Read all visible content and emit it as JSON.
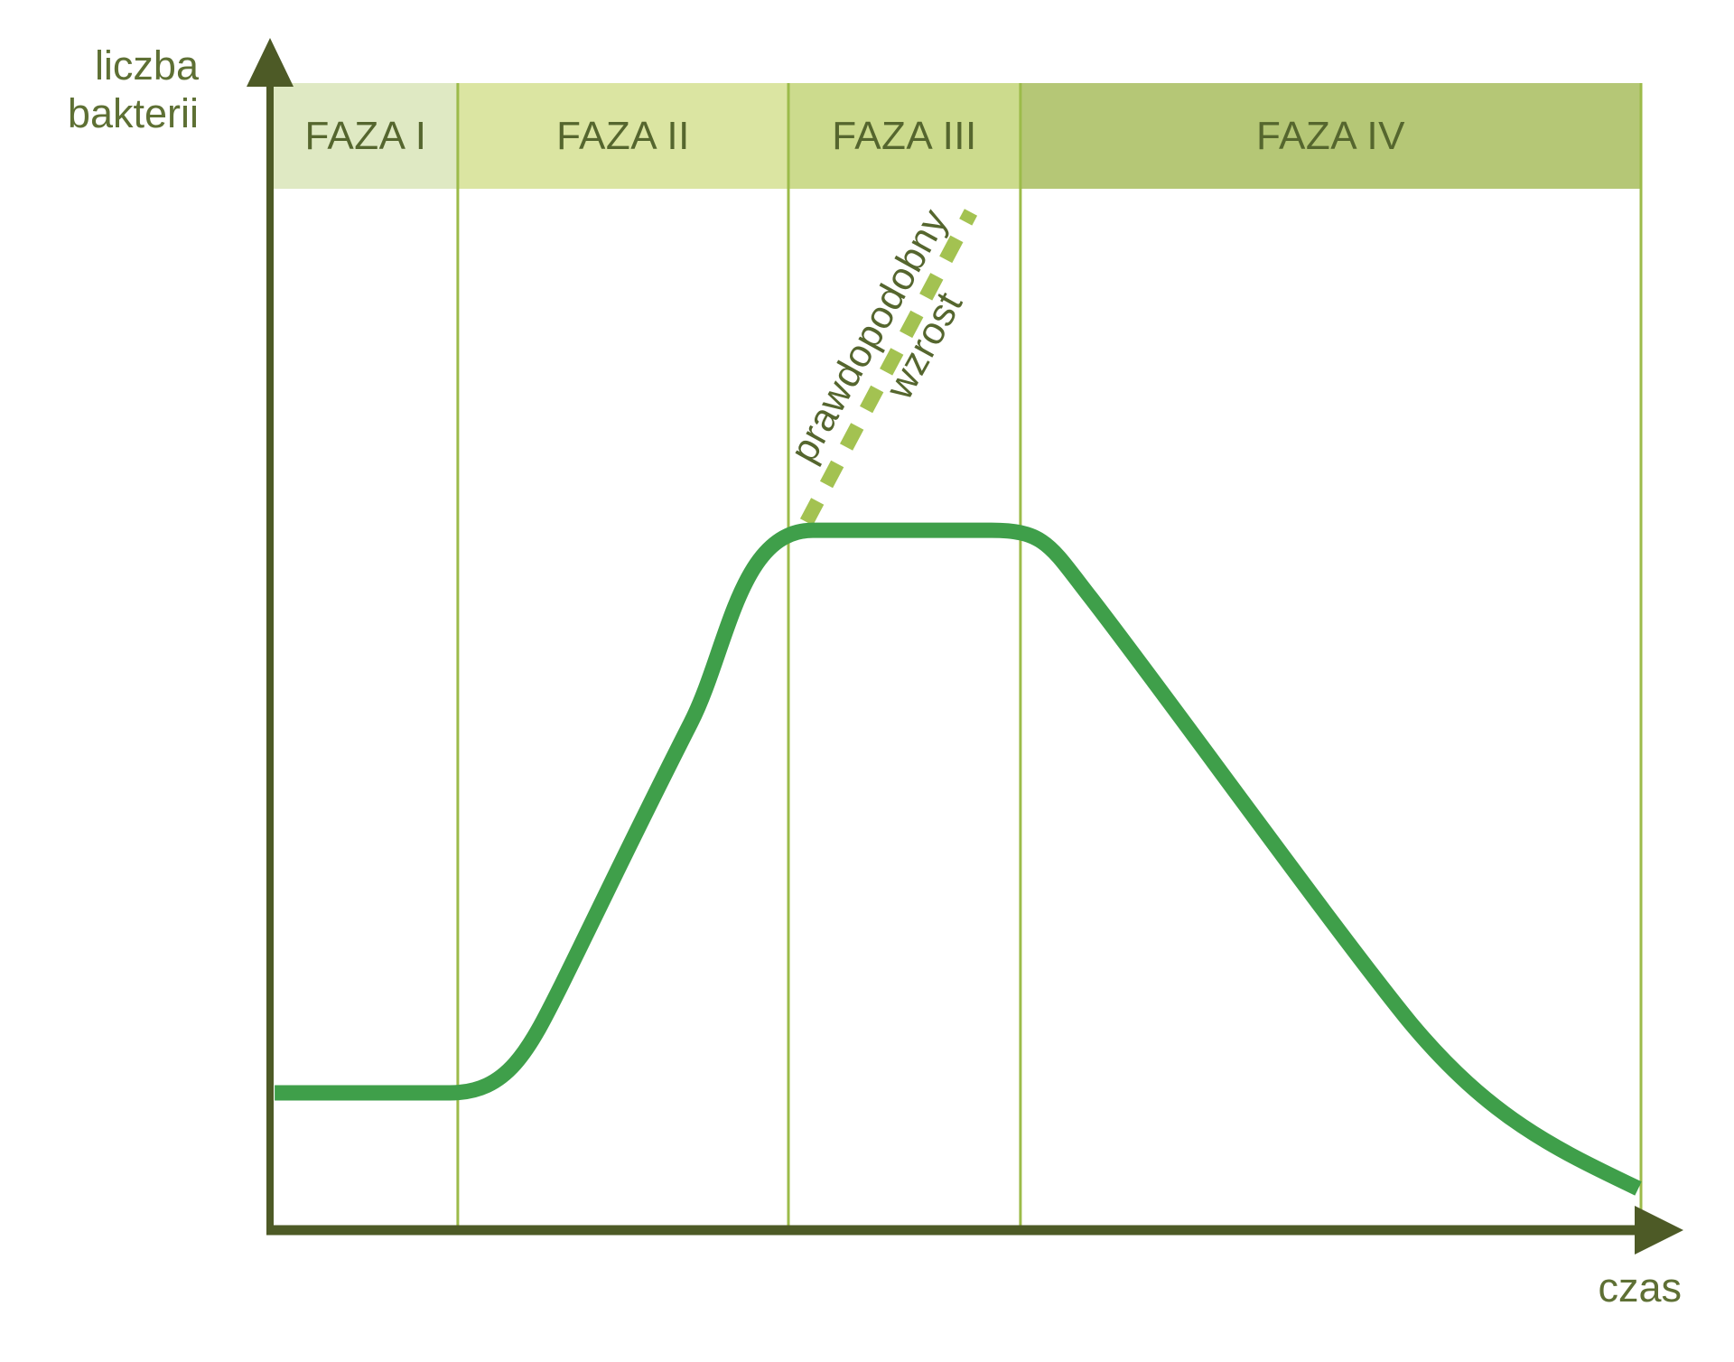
{
  "y_axis": {
    "label_line1": "liczba",
    "label_line2": "bakterii"
  },
  "x_axis": {
    "label": "czas"
  },
  "phases": [
    {
      "label": "FAZA I",
      "color": "#dfe9c3"
    },
    {
      "label": "FAZA II",
      "color": "#dbe5a2"
    },
    {
      "label": "FAZA III",
      "color": "#ccdb8d"
    },
    {
      "label": "FAZA IV",
      "color": "#b5c776"
    }
  ],
  "annotation": {
    "word1": "prawdopodobny",
    "word2": "wzrost"
  },
  "colors": {
    "background": "#ffffff",
    "axis": "#4d5a26",
    "axis_label_text": "#5e7034",
    "phase_label_text": "#55662e",
    "divider": "#9cbb4a",
    "curve": "#3f9f4a",
    "dashed_line": "#a3c251"
  },
  "chart_data": {
    "type": "line",
    "title": "",
    "xlabel": "czas",
    "ylabel": "liczba bakterii",
    "axes_quantitative": false,
    "grid": false,
    "legend": false,
    "phase_bands": [
      "FAZA I",
      "FAZA II",
      "FAZA III",
      "FAZA IV"
    ],
    "phase_boundaries_pct": [
      0,
      13.47,
      37.65,
      54.62,
      100
    ],
    "series": [
      {
        "name": "liczba bakterii",
        "style": "solid",
        "path_segments": [
          {
            "cmd": "M",
            "pts": [
              [
                0.07,
                12.04
              ]
            ]
          },
          {
            "cmd": "L",
            "pts": [
              [
                12.88,
                12.04
              ]
            ]
          },
          {
            "cmd": "C",
            "pts": [
              [
                17.11,
                12.04
              ],
              [
                18.63,
                15.66
              ],
              [
                21.07,
                21.48
              ]
            ]
          },
          {
            "cmd": "C",
            "pts": [
              [
                24.9,
                30.76
              ],
              [
                26.22,
                34.22
              ],
              [
                30.52,
                44.3
              ]
            ]
          },
          {
            "cmd": "C",
            "pts": [
              [
                33.22,
                50.67
              ],
              [
                34.02,
                61.05
              ],
              [
                39.43,
                61.05
              ]
            ]
          },
          {
            "cmd": "L",
            "pts": [
              [
                52.51,
                61.05
              ]
            ]
          },
          {
            "cmd": "C",
            "pts": [
              [
                56.47,
                61.05
              ],
              [
                56.87,
                59.56
              ],
              [
                59.77,
                55.15
              ]
            ]
          },
          {
            "cmd": "C",
            "pts": [
              [
                65.19,
                46.81
              ],
              [
                77.61,
                26.2
              ],
              [
                83.16,
                18.1
              ]
            ]
          },
          {
            "cmd": "C",
            "pts": [
              [
                88.97,
                9.83
              ],
              [
                93.73,
                7.16
              ],
              [
                99.8,
                3.7
              ]
            ]
          }
        ]
      },
      {
        "name": "prawdopodobny wzrost",
        "style": "dashed",
        "points_pct": [
          [
            38.97,
            61.76
          ],
          [
            50.99,
            88.75
          ]
        ]
      }
    ]
  }
}
